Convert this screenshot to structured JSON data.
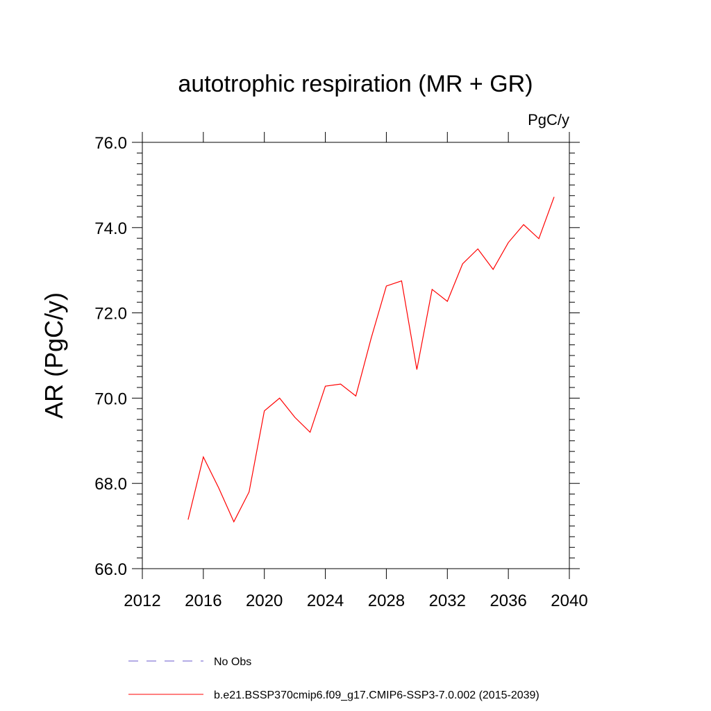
{
  "chart_data": {
    "type": "line",
    "title": "autotrophic respiration (MR + GR)",
    "units_label": "PgC/y",
    "ylabel": "AR  (PgC/y)",
    "xlabel": "",
    "xlim": [
      2012,
      2040
    ],
    "ylim": [
      66.0,
      76.0
    ],
    "xticks": [
      2012,
      2016,
      2020,
      2024,
      2028,
      2032,
      2036,
      2040
    ],
    "xtick_labels": [
      "2012",
      "2016",
      "2020",
      "2024",
      "2028",
      "2032",
      "2036",
      "2040"
    ],
    "yticks": [
      66,
      68,
      70,
      72,
      74,
      76
    ],
    "ytick_labels": [
      "66.0",
      "68.0",
      "70.0",
      "72.0",
      "74.0",
      "76.0"
    ],
    "grid": false,
    "legend_position": "bottom",
    "series": [
      {
        "name": "b.e21.BSSP370cmip6.f09_g17.CMIP6-SSP3-7.0.002 (2015-2039)",
        "color": "#ff0000",
        "style": "solid",
        "x": [
          2015,
          2016,
          2017,
          2018,
          2019,
          2020,
          2021,
          2022,
          2023,
          2024,
          2025,
          2026,
          2027,
          2028,
          2029,
          2030,
          2031,
          2032,
          2033,
          2034,
          2035,
          2036,
          2037,
          2038,
          2039
        ],
        "y": [
          67.15,
          68.62,
          67.9,
          67.1,
          67.8,
          69.7,
          70.0,
          69.55,
          69.2,
          70.28,
          70.33,
          70.05,
          71.4,
          72.63,
          72.75,
          70.67,
          72.55,
          72.27,
          73.15,
          73.5,
          73.02,
          73.65,
          74.07,
          73.74,
          74.72
        ]
      }
    ],
    "legend": [
      {
        "label": "No Obs",
        "color": "#6a5acd",
        "style": "dashed"
      },
      {
        "label": "b.e21.BSSP370cmip6.f09_g17.CMIP6-SSP3-7.0.002 (2015-2039)",
        "color": "#ff0000",
        "style": "solid"
      }
    ]
  }
}
